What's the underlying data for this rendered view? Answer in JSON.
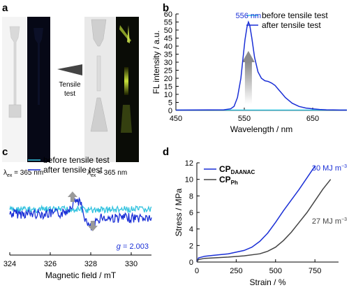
{
  "panels": {
    "a": {
      "letter": "a",
      "arrow_label": "Tensile\ntest",
      "excitation_label": "λex = 365 nm",
      "excitation_left": "λex = 365 nm",
      "excitation_right": "λex = 365 nm"
    },
    "b": {
      "letter": "b"
    },
    "c": {
      "letter": "c"
    },
    "d": {
      "letter": "d"
    }
  },
  "colors": {
    "before": "#34c3df",
    "after": "#1a2fd6",
    "cp_daanac": "#1a2fd6",
    "cp_ph": "#444444",
    "arrow_gray": "#9a9a9a"
  },
  "chart_data": [
    {
      "id": "b",
      "type": "line",
      "xlabel": "Wavelength / nm",
      "ylabel": "FL intensity / a.u.",
      "xlim": [
        450,
        700
      ],
      "ylim": [
        0,
        60
      ],
      "xticks": [
        450,
        550,
        650
      ],
      "yticks": [
        0,
        5,
        10,
        15,
        20,
        25,
        30,
        35,
        40,
        45,
        50,
        55,
        60
      ],
      "legend": "top-right",
      "annotation": "556 nm",
      "series": [
        {
          "name": "before tensile test",
          "color": "#34c3df",
          "x": [
            450,
            700
          ],
          "y": [
            0.2,
            0.2
          ]
        },
        {
          "name": "after tensile test",
          "color": "#1a2fd6",
          "x": [
            450,
            520,
            530,
            535,
            540,
            545,
            548,
            551,
            554,
            556,
            558,
            561,
            565,
            570,
            575,
            580,
            585,
            590,
            595,
            600,
            605,
            610,
            620,
            630,
            640,
            650,
            660,
            670,
            680,
            690,
            700
          ],
          "y": [
            0.2,
            0.4,
            1.0,
            2.5,
            8,
            20,
            32,
            44,
            52,
            55,
            53,
            45,
            33,
            24,
            20,
            18.5,
            18,
            17,
            15.5,
            13,
            10.5,
            8,
            4.5,
            2.5,
            1.5,
            1,
            0.6,
            0.4,
            0.3,
            0.2,
            0.2
          ]
        }
      ]
    },
    {
      "id": "c",
      "type": "line",
      "xlabel": "Magnetic field / mT",
      "xlim": [
        324,
        331
      ],
      "xticks": [
        324,
        326,
        328,
        330
      ],
      "legend": "top-right",
      "annotation": "g = 2.003",
      "series": [
        {
          "name": "before tensile test",
          "color": "#34c3df"
        },
        {
          "name": "after tensile test",
          "color": "#1a2fd6"
        }
      ]
    },
    {
      "id": "d",
      "type": "line",
      "xlabel": "Strain / %",
      "ylabel": "Stress / MPa",
      "xlim": [
        0,
        900
      ],
      "ylim": [
        0,
        12
      ],
      "xticks": [
        0,
        250,
        500,
        750
      ],
      "yticks": [
        0,
        2,
        4,
        6,
        8,
        10,
        12
      ],
      "legend": "top-left",
      "series": [
        {
          "name": "CP",
          "sub": "DAANAC",
          "color": "#1a2fd6",
          "x": [
            0,
            10,
            50,
            100,
            200,
            300,
            350,
            400,
            450,
            500,
            550,
            600,
            650,
            700,
            750
          ],
          "y": [
            0,
            0.5,
            0.7,
            0.8,
            1.0,
            1.4,
            1.8,
            2.5,
            3.5,
            4.8,
            6.2,
            7.5,
            8.8,
            10.2,
            11.6
          ],
          "annotation": "30 MJ m−3"
        },
        {
          "name": "CP",
          "sub": "Ph",
          "color": "#444444",
          "x": [
            0,
            10,
            50,
            100,
            200,
            300,
            400,
            450,
            500,
            550,
            600,
            650,
            700,
            750,
            800,
            850
          ],
          "y": [
            0,
            0.3,
            0.45,
            0.5,
            0.6,
            0.75,
            1.0,
            1.3,
            1.8,
            2.6,
            3.6,
            4.8,
            6.0,
            7.4,
            8.8,
            10.0
          ],
          "annotation": "27 MJ m−3"
        }
      ]
    }
  ]
}
